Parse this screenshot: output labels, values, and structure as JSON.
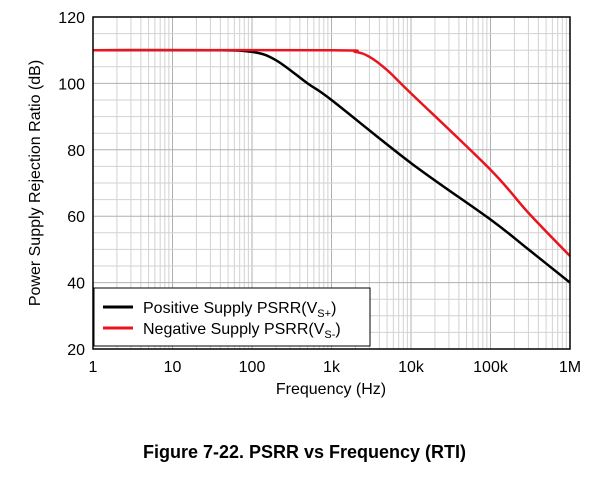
{
  "caption": "Figure 7-22. PSRR vs Frequency (RTI)",
  "chart_data": {
    "type": "line",
    "xlabel": "Frequency (Hz)",
    "ylabel": "Power Supply Rejection Ratio (dB)",
    "xscale": "log",
    "xlim": [
      1,
      1000000
    ],
    "ylim": [
      20,
      120
    ],
    "xticks": [
      1,
      10,
      100,
      1000,
      10000,
      100000,
      1000000
    ],
    "xticklabels": [
      "1",
      "10",
      "100",
      "1k",
      "10k",
      "100k",
      "1M"
    ],
    "yticks": [
      20,
      40,
      60,
      80,
      100,
      120
    ],
    "yticklabels": [
      "20",
      "40",
      "60",
      "80",
      "100",
      "120"
    ],
    "grid": true,
    "legend_position": "bottom-left",
    "series": [
      {
        "name": "Positive Supply PSRR(VS+)",
        "legend_main": "Positive Supply PSRR(V",
        "legend_sub": "S+",
        "legend_end": ")",
        "color": "#000000",
        "points": [
          [
            1,
            110
          ],
          [
            30,
            110
          ],
          [
            100,
            109.5
          ],
          [
            200,
            107
          ],
          [
            500,
            100
          ],
          [
            1000,
            95
          ],
          [
            10000,
            76
          ],
          [
            100000,
            59
          ],
          [
            300000,
            50
          ],
          [
            1000000,
            40
          ]
        ]
      },
      {
        "name": "Negative Supply PSRR(VS-)",
        "legend_main": "Negative Supply PSRR(V",
        "legend_sub": "S-",
        "legend_end": ")",
        "color": "#e8141e",
        "points": [
          [
            1,
            110
          ],
          [
            1000,
            110
          ],
          [
            2000,
            109.5
          ],
          [
            3000,
            108
          ],
          [
            5000,
            104
          ],
          [
            10000,
            97
          ],
          [
            100000,
            74
          ],
          [
            300000,
            61
          ],
          [
            1000000,
            48
          ]
        ]
      }
    ]
  }
}
